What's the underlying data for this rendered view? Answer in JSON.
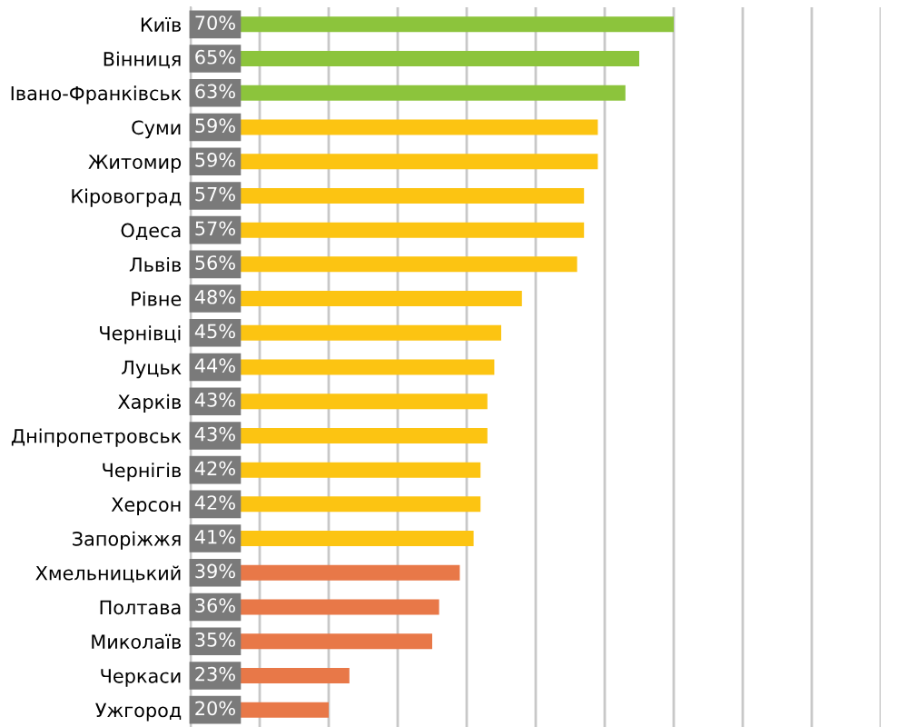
{
  "chart_data": {
    "type": "bar",
    "orientation": "horizontal",
    "categories": [
      "Київ",
      "Вінниця",
      "Івано-Франківськ",
      "Суми",
      "Житомир",
      "Кіровоград",
      "Одеса",
      "Львів",
      "Рівне",
      "Чернівці",
      "Луцьк",
      "Харків",
      "Дніпропетровськ",
      "Чернігів",
      "Херсон",
      "Запоріжжя",
      "Хмельницький",
      "Полтава",
      "Миколаїв",
      "Черкаси",
      "Ужгород"
    ],
    "values": [
      70,
      65,
      63,
      59,
      59,
      57,
      57,
      56,
      48,
      45,
      44,
      43,
      43,
      42,
      42,
      41,
      39,
      36,
      35,
      23,
      20
    ],
    "value_labels": [
      "70%",
      "65%",
      "63%",
      "59%",
      "59%",
      "57%",
      "57%",
      "56%",
      "48%",
      "45%",
      "44%",
      "43%",
      "43%",
      "42%",
      "42%",
      "41%",
      "39%",
      "36%",
      "35%",
      "23%",
      "20%"
    ],
    "colors": [
      "#8cc43c",
      "#8cc43c",
      "#8cc43c",
      "#fcc412",
      "#fcc412",
      "#fcc412",
      "#fcc412",
      "#fcc412",
      "#fcc412",
      "#fcc412",
      "#fcc412",
      "#fcc412",
      "#fcc412",
      "#fcc412",
      "#fcc412",
      "#fcc412",
      "#e87848",
      "#e87848",
      "#e87848",
      "#e87848",
      "#e87848"
    ],
    "xlim": [
      0,
      100
    ],
    "xticks": [
      0,
      10,
      20,
      30,
      40,
      50,
      60,
      70,
      80,
      90,
      100
    ],
    "tick_labels": "y",
    "grid": "x",
    "legend": false
  }
}
